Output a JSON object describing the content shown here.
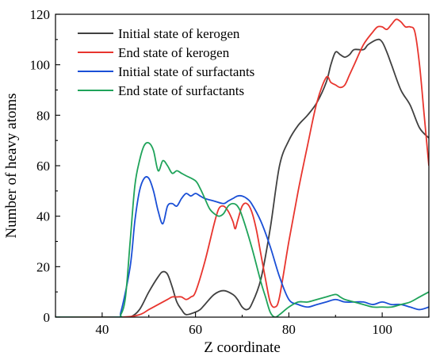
{
  "chart_data": {
    "type": "line",
    "title": "",
    "xlabel": "Z coordinate",
    "ylabel": "Number of heavy atoms",
    "xlim": [
      30,
      110
    ],
    "ylim": [
      0,
      120
    ],
    "x_ticks": [
      40,
      60,
      80,
      100
    ],
    "y_ticks": [
      0,
      20,
      40,
      60,
      80,
      100,
      120
    ],
    "grid": false,
    "legend_position": "top-left",
    "series": [
      {
        "name": "Initial state of kerogen",
        "color": "#404040",
        "points": [
          [
            30,
            0
          ],
          [
            44,
            0
          ],
          [
            46,
            0
          ],
          [
            48,
            3
          ],
          [
            50,
            10
          ],
          [
            52,
            16
          ],
          [
            53,
            18
          ],
          [
            54,
            17
          ],
          [
            55,
            12
          ],
          [
            56,
            6
          ],
          [
            57,
            3
          ],
          [
            58,
            1
          ],
          [
            60,
            2
          ],
          [
            61,
            3
          ],
          [
            62,
            5
          ],
          [
            64,
            9
          ],
          [
            66,
            10.5
          ],
          [
            68,
            9
          ],
          [
            69,
            7
          ],
          [
            70,
            4
          ],
          [
            71,
            3
          ],
          [
            72,
            5
          ],
          [
            74,
            15
          ],
          [
            76,
            35
          ],
          [
            78,
            60
          ],
          [
            80,
            70
          ],
          [
            82,
            76
          ],
          [
            84,
            80
          ],
          [
            86,
            85
          ],
          [
            88,
            93
          ],
          [
            89,
            100
          ],
          [
            90,
            105
          ],
          [
            91,
            104
          ],
          [
            92,
            103
          ],
          [
            93,
            104
          ],
          [
            94,
            106
          ],
          [
            96,
            106
          ],
          [
            97,
            108
          ],
          [
            99,
            110
          ],
          [
            100,
            109
          ],
          [
            101,
            105
          ],
          [
            102,
            100
          ],
          [
            104,
            90
          ],
          [
            106,
            84
          ],
          [
            108,
            75
          ],
          [
            110,
            71
          ]
        ]
      },
      {
        "name": "End state of kerogen",
        "color": "#e8352e",
        "points": [
          [
            30,
            0
          ],
          [
            44,
            0
          ],
          [
            48,
            1
          ],
          [
            50,
            3
          ],
          [
            52,
            5
          ],
          [
            54,
            7
          ],
          [
            55,
            8
          ],
          [
            56,
            8
          ],
          [
            57,
            8
          ],
          [
            58,
            7
          ],
          [
            59,
            8
          ],
          [
            60,
            10
          ],
          [
            62,
            22
          ],
          [
            64,
            37
          ],
          [
            65,
            43
          ],
          [
            66,
            44
          ],
          [
            67,
            42
          ],
          [
            68,
            38
          ],
          [
            68.5,
            35
          ],
          [
            69,
            38
          ],
          [
            70,
            44
          ],
          [
            71,
            45
          ],
          [
            72,
            42
          ],
          [
            73,
            35
          ],
          [
            74,
            25
          ],
          [
            75,
            15
          ],
          [
            76,
            6
          ],
          [
            77,
            4
          ],
          [
            78,
            8
          ],
          [
            80,
            30
          ],
          [
            82,
            50
          ],
          [
            84,
            68
          ],
          [
            86,
            85
          ],
          [
            88,
            95
          ],
          [
            89,
            93
          ],
          [
            90,
            92
          ],
          [
            91,
            91
          ],
          [
            92,
            92
          ],
          [
            93,
            96
          ],
          [
            94,
            100
          ],
          [
            96,
            108
          ],
          [
            98,
            113
          ],
          [
            99,
            115
          ],
          [
            100,
            115
          ],
          [
            101,
            114
          ],
          [
            102,
            116
          ],
          [
            103,
            118
          ],
          [
            104,
            117
          ],
          [
            105,
            115
          ],
          [
            106,
            115
          ],
          [
            107,
            113
          ],
          [
            108,
            100
          ],
          [
            109,
            80
          ],
          [
            110,
            60
          ]
        ]
      },
      {
        "name": "Initial state of surfactants",
        "color": "#1a4fd6",
        "points": [
          [
            30,
            0
          ],
          [
            43,
            0
          ],
          [
            44,
            2
          ],
          [
            46,
            20
          ],
          [
            47,
            38
          ],
          [
            48,
            50
          ],
          [
            49,
            55
          ],
          [
            50,
            55
          ],
          [
            51,
            50
          ],
          [
            52,
            42
          ],
          [
            53,
            37
          ],
          [
            54,
            44
          ],
          [
            55,
            45
          ],
          [
            56,
            44
          ],
          [
            57,
            47
          ],
          [
            58,
            49
          ],
          [
            59,
            48
          ],
          [
            60,
            49
          ],
          [
            61,
            48
          ],
          [
            62,
            47
          ],
          [
            64,
            46
          ],
          [
            66,
            45
          ],
          [
            67,
            46
          ],
          [
            68,
            47
          ],
          [
            69,
            48
          ],
          [
            70,
            48
          ],
          [
            71,
            47
          ],
          [
            72,
            45
          ],
          [
            74,
            38
          ],
          [
            76,
            28
          ],
          [
            78,
            16
          ],
          [
            80,
            7
          ],
          [
            82,
            5
          ],
          [
            84,
            4
          ],
          [
            86,
            5
          ],
          [
            88,
            6
          ],
          [
            90,
            7
          ],
          [
            92,
            6
          ],
          [
            94,
            6
          ],
          [
            96,
            6
          ],
          [
            98,
            5
          ],
          [
            100,
            6
          ],
          [
            102,
            5
          ],
          [
            104,
            5
          ],
          [
            106,
            4
          ],
          [
            108,
            3
          ],
          [
            110,
            4
          ]
        ]
      },
      {
        "name": "End state of surfactants",
        "color": "#1fa35a",
        "points": [
          [
            30,
            0
          ],
          [
            43,
            0
          ],
          [
            44,
            1
          ],
          [
            45,
            8
          ],
          [
            46,
            30
          ],
          [
            47,
            52
          ],
          [
            48,
            62
          ],
          [
            49,
            68
          ],
          [
            50,
            69
          ],
          [
            51,
            66
          ],
          [
            52,
            58
          ],
          [
            53,
            62
          ],
          [
            54,
            60
          ],
          [
            55,
            57
          ],
          [
            56,
            58
          ],
          [
            57,
            57
          ],
          [
            58,
            56
          ],
          [
            60,
            54
          ],
          [
            61,
            51
          ],
          [
            62,
            47
          ],
          [
            63,
            43
          ],
          [
            64,
            41
          ],
          [
            65,
            40
          ],
          [
            66,
            41
          ],
          [
            67,
            44
          ],
          [
            68,
            45
          ],
          [
            69,
            44
          ],
          [
            70,
            40
          ],
          [
            72,
            28
          ],
          [
            74,
            14
          ],
          [
            75,
            8
          ],
          [
            76,
            2
          ],
          [
            77,
            0
          ],
          [
            78,
            1
          ],
          [
            80,
            4
          ],
          [
            82,
            6
          ],
          [
            84,
            6
          ],
          [
            86,
            7
          ],
          [
            88,
            8
          ],
          [
            90,
            9
          ],
          [
            91,
            8
          ],
          [
            92,
            7
          ],
          [
            94,
            6
          ],
          [
            96,
            5
          ],
          [
            98,
            4
          ],
          [
            100,
            4
          ],
          [
            102,
            4
          ],
          [
            104,
            5
          ],
          [
            106,
            6
          ],
          [
            108,
            8
          ],
          [
            110,
            10
          ]
        ]
      }
    ]
  }
}
